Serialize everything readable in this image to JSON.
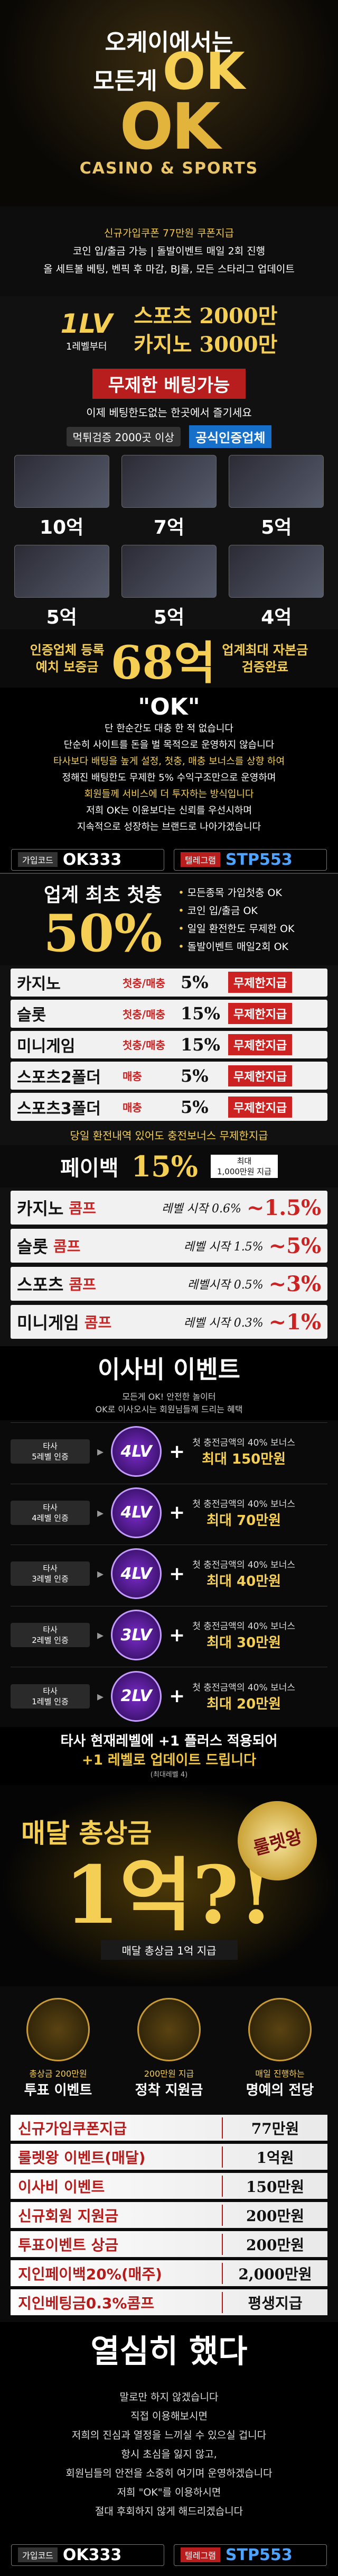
{
  "hero": {
    "tagline_1": "오케이에서는",
    "tagline_2": "모든게",
    "tagline_ok": "OK",
    "logo": "OK",
    "logo_sub": "CASINO & SPORTS"
  },
  "intro": [
    "신규가입쿠폰 77만원 쿠폰지급",
    "코인 입/출금 가능 | 돌발이벤트 매일 2회 진행",
    "올 세트볼 베팅, 벤픽 후 마감, BJ룰, 모든 스타리그 업데이트"
  ],
  "levels": {
    "badge": "1LV",
    "badge_sub": "1레벨부터",
    "limits": [
      "스포츠 2000만",
      "카지노 3000만"
    ]
  },
  "unlimited": {
    "title": "무제한 베팅가능",
    "text": "이제 베팅한도없는 한곳에서 즐기세요"
  },
  "verified": {
    "left": "먹튀검증 2000곳 이상",
    "right": "공식인증업체"
  },
  "partners": [
    "10억",
    "7억",
    "5억",
    "5억",
    "5억",
    "4억"
  ],
  "deposit": {
    "left": [
      "인증업체 등록",
      "예치 보증금"
    ],
    "amount": "68억",
    "right": [
      "업계최대 자본금",
      "검증완료"
    ]
  },
  "promise": {
    "title": "\"OK\"",
    "lines": [
      "단 한순간도 대충 한 적 없습니다",
      "단순히 사이트를 돈을 벌 목적으로 운영하지 않습니다",
      "타사보다 배팅을 높게 설정, 첫충, 매충 보너스를 상향 하여",
      "정해진 배팅한도 무제한 5% 수익구조만으로 운영하며",
      "회원들께 서비스에 더 투자하는 방식입니다",
      "저희 OK는 이윤보다는 신뢰를 우선시하며",
      "지속적으로 성장하는 브랜드로 나아가겠습니다"
    ]
  },
  "code": {
    "join_label": "가입코드",
    "join": "OK333",
    "tg_label": "텔레그램",
    "tg": "STP553"
  },
  "first_charge": {
    "title": "업계 최초 첫충",
    "percent": "50%",
    "bullets": [
      "모든종목 가입첫충 OK",
      "코인 입/출금 OK",
      "일일 환전한도 무제한 OK",
      "돌발이벤트 매일2회 OK"
    ]
  },
  "bonuses": [
    {
      "game": "카지노",
      "kind": "첫충/매충",
      "rate": "5%",
      "note": "무제한지급"
    },
    {
      "game": "슬롯",
      "kind": "첫충/매충",
      "rate": "15%",
      "note": "무제한지급"
    },
    {
      "game": "미니게임",
      "kind": "첫충/매충",
      "rate": "15%",
      "note": "무제한지급"
    },
    {
      "game": "스포츠2폴더",
      "kind": "매충",
      "rate": "5%",
      "note": "무제한지급"
    },
    {
      "game": "스포츠3폴더",
      "kind": "매충",
      "rate": "5%",
      "note": "무제한지급"
    }
  ],
  "bonus_note": "당일 환전내역 있어도 충전보너스 무제한지급",
  "payback": {
    "title": "페이백",
    "rate": "15%",
    "max_label": "최대",
    "max": "1,000만원 지급"
  },
  "comps": [
    {
      "game": "카지노",
      "comp": "콤프",
      "start": "레벨 시작 0.6%",
      "max": "~1.5%"
    },
    {
      "game": "슬롯",
      "comp": "콤프",
      "start": "레벨 시작 1.5%",
      "max": "~5%"
    },
    {
      "game": "스포츠",
      "comp": "콤프",
      "start": "레벨시작 0.5%",
      "max": "~3%"
    },
    {
      "game": "미니게임",
      "comp": "콤프",
      "start": "레벨 시작 0.3%",
      "max": "~1%"
    }
  ],
  "moving": {
    "title": "이사비 이벤트",
    "sub": [
      "모든게 OK! 안전한 놀이터",
      "OK로 이사오시는 회원님들께 드리는 혜택"
    ],
    "rows": [
      {
        "from": "타사",
        "level": "5레벨 인증",
        "to": "4LV",
        "bonus": "첫 충전금액의 40% 보너스",
        "max": "최대 150만원"
      },
      {
        "from": "타사",
        "level": "4레벨 인증",
        "to": "4LV",
        "bonus": "첫 충전금액의 40% 보너스",
        "max": "최대 70만원"
      },
      {
        "from": "타사",
        "level": "3레벨 인증",
        "to": "4LV",
        "bonus": "첫 충전금액의 40% 보너스",
        "max": "최대 40만원"
      },
      {
        "from": "타사",
        "level": "2레벨 인증",
        "to": "3LV",
        "bonus": "첫 충전금액의 40% 보너스",
        "max": "최대 30만원"
      },
      {
        "from": "타사",
        "level": "1레벨 인증",
        "to": "2LV",
        "bonus": "첫 충전금액의 40% 보너스",
        "max": "최대 20만원"
      }
    ]
  },
  "upgrade": {
    "lines": [
      "타사 현재레벨에 +1 플러스 적용되어",
      "+1 레벨로 업데이트 드립니다"
    ],
    "note": "(최대레벨 4)"
  },
  "roulette": {
    "title": "매달 총상금",
    "amount": "1억?!",
    "badge": "룰렛왕",
    "caption": "매달 총상금 1억 지급"
  },
  "events": [
    {
      "top": "총상금 200만원",
      "label": "투표 이벤트"
    },
    {
      "top": "200만원 지급",
      "label": "정착 지원금"
    },
    {
      "top": "매일 진행하는",
      "label": "명예의 전당"
    }
  ],
  "benefits": [
    {
      "name": "신규가입쿠폰지급",
      "value": "77만원"
    },
    {
      "name": "룰렛왕 이벤트(매달)",
      "value": "1억원"
    },
    {
      "name": "이사비 이벤트",
      "value": "150만원"
    },
    {
      "name": "신규회원 지원금",
      "value": "200만원"
    },
    {
      "name": "투표이벤트 상금",
      "value": "200만원"
    },
    {
      "name": "지인페이백20%(매주)",
      "value": "2,000만원"
    },
    {
      "name": "지인베팅금0.3%콤프",
      "value": "평생지급"
    }
  ],
  "closing": {
    "title": "열심히 했다",
    "lines": [
      "말로만 하지 않겠습니다",
      "직접 이용해보시면",
      "저희의 진심과 열정을 느끼실 수 있으실 겁니다",
      "항시 초심을 잃지 않고,",
      "회원님들의 안전을 소중히 여기며 운영하겠습니다",
      "저희 \"OK\"를 이용하시면",
      "절대 후회하지 않게 해드리겠습니다"
    ]
  }
}
